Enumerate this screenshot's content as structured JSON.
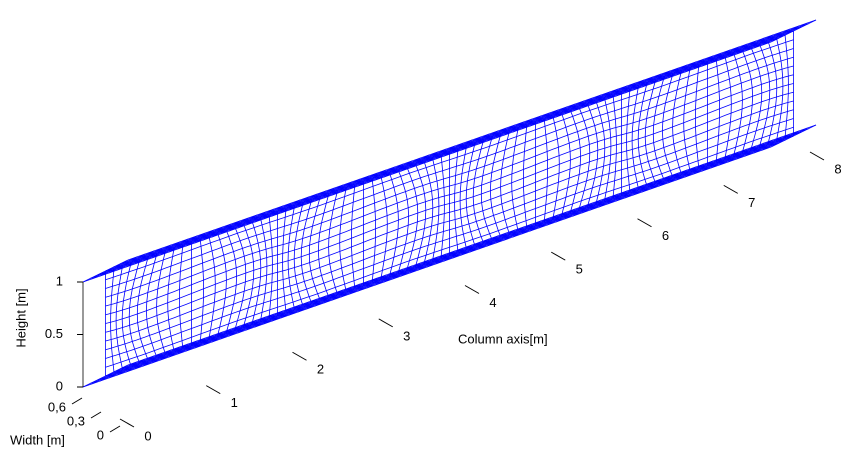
{
  "chart_data": {
    "type": "surface3d",
    "xlabel": "Column axis[m]",
    "ylabel": "Width [m]",
    "zlabel": "Height [m]",
    "xlim": [
      0,
      8
    ],
    "xticks": [
      0,
      1,
      2,
      3,
      4,
      5,
      6,
      7,
      8
    ],
    "ylim": [
      0,
      0.6
    ],
    "yticks": [
      0,
      {
        "value": 0.3,
        "label": "0,3"
      },
      {
        "value": 0.6,
        "label": "0,6"
      }
    ],
    "zlim": [
      0,
      1
    ],
    "zticks": [
      0,
      0.5,
      1
    ],
    "color": "#0000ff"
  }
}
